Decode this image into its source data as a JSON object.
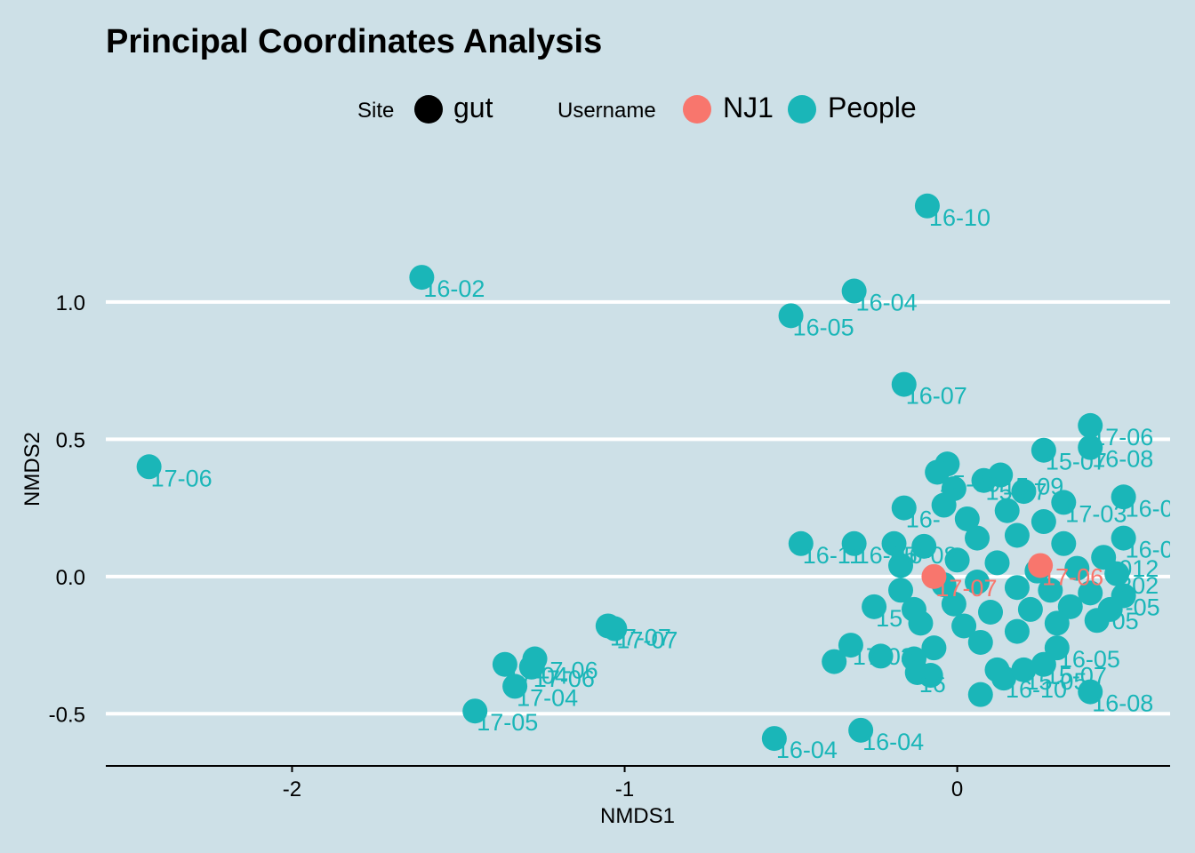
{
  "chart_data": {
    "type": "scatter",
    "title": "Principal Coordinates Analysis",
    "xlabel": "NMDS1",
    "ylabel": "NMDS2",
    "xlim": [
      -2.56,
      0.64
    ],
    "ylim": [
      -0.69,
      1.55
    ],
    "xticks": [
      {
        "v": -2,
        "label": "-2"
      },
      {
        "v": -1,
        "label": "-1"
      },
      {
        "v": 0,
        "label": "0"
      }
    ],
    "yticks": [
      {
        "v": -0.5,
        "label": "-0.5"
      },
      {
        "v": 0,
        "label": "0.0"
      },
      {
        "v": 0.5,
        "label": "0.5"
      },
      {
        "v": 1,
        "label": "1.0"
      }
    ],
    "grid": "horizontal major lines only",
    "legend": {
      "position": "top",
      "site": {
        "title": "Site",
        "items": [
          {
            "label": "gut",
            "color": "#000000"
          }
        ]
      },
      "username": {
        "title": "Username",
        "items": [
          {
            "label": "NJ1",
            "color": "#f8766d"
          },
          {
            "label": "People",
            "color": "#1ab6b8"
          }
        ]
      }
    },
    "colors": {
      "NJ1": "#f8766d",
      "People": "#1ab6b8"
    },
    "series": [
      {
        "name": "People",
        "points": [
          {
            "x": -0.09,
            "y": 1.35,
            "label": "16-10"
          },
          {
            "x": -1.61,
            "y": 1.09,
            "label": "16-02"
          },
          {
            "x": -0.31,
            "y": 1.04,
            "label": "16-04"
          },
          {
            "x": -0.5,
            "y": 0.95,
            "label": "16-05"
          },
          {
            "x": -0.16,
            "y": 0.7,
            "label": "16-07"
          },
          {
            "x": 0.4,
            "y": 0.55,
            "label": "17-06"
          },
          {
            "x": 0.4,
            "y": 0.47,
            "label": "16-08"
          },
          {
            "x": 0.26,
            "y": 0.46,
            "label": "15-07"
          },
          {
            "x": -2.43,
            "y": 0.4,
            "label": "17-06"
          },
          {
            "x": -0.03,
            "y": 0.41,
            "label": ""
          },
          {
            "x": -0.06,
            "y": 0.38,
            "label": "15-09"
          },
          {
            "x": 0.13,
            "y": 0.37,
            "label": "15-09"
          },
          {
            "x": 0.08,
            "y": 0.35,
            "label": "15-07"
          },
          {
            "x": 0.2,
            "y": 0.31,
            "label": ""
          },
          {
            "x": -0.01,
            "y": 0.32,
            "label": ""
          },
          {
            "x": 0.5,
            "y": 0.29,
            "label": "16-0"
          },
          {
            "x": 0.32,
            "y": 0.27,
            "label": "17-03"
          },
          {
            "x": -0.16,
            "y": 0.25,
            "label": "16-"
          },
          {
            "x": -0.04,
            "y": 0.26,
            "label": ""
          },
          {
            "x": 0.15,
            "y": 0.24,
            "label": ""
          },
          {
            "x": 0.03,
            "y": 0.21,
            "label": ""
          },
          {
            "x": 0.26,
            "y": 0.2,
            "label": ""
          },
          {
            "x": 0.5,
            "y": 0.14,
            "label": "16-0"
          },
          {
            "x": -0.47,
            "y": 0.12,
            "label": "16-11"
          },
          {
            "x": -0.31,
            "y": 0.12,
            "label": "16-05"
          },
          {
            "x": -0.19,
            "y": 0.12,
            "label": "16-08"
          },
          {
            "x": -0.1,
            "y": 0.11,
            "label": ""
          },
          {
            "x": 0.06,
            "y": 0.14,
            "label": ""
          },
          {
            "x": 0.18,
            "y": 0.15,
            "label": ""
          },
          {
            "x": 0.32,
            "y": 0.12,
            "label": ""
          },
          {
            "x": 0.44,
            "y": 0.07,
            "label": "2012"
          },
          {
            "x": -0.17,
            "y": 0.04,
            "label": ""
          },
          {
            "x": 0.0,
            "y": 0.06,
            "label": ""
          },
          {
            "x": 0.12,
            "y": 0.05,
            "label": ""
          },
          {
            "x": 0.24,
            "y": 0.02,
            "label": ""
          },
          {
            "x": 0.36,
            "y": 0.03,
            "label": ""
          },
          {
            "x": 0.48,
            "y": 0.01,
            "label": "202"
          },
          {
            "x": -0.17,
            "y": -0.05,
            "label": ""
          },
          {
            "x": -0.04,
            "y": -0.03,
            "label": ""
          },
          {
            "x": 0.06,
            "y": -0.02,
            "label": ""
          },
          {
            "x": 0.18,
            "y": -0.04,
            "label": ""
          },
          {
            "x": 0.28,
            "y": -0.05,
            "label": ""
          },
          {
            "x": 0.4,
            "y": -0.06,
            "label": ""
          },
          {
            "x": 0.5,
            "y": -0.07,
            "label": "-05"
          },
          {
            "x": -0.25,
            "y": -0.11,
            "label": "15"
          },
          {
            "x": -0.13,
            "y": -0.12,
            "label": ""
          },
          {
            "x": -0.01,
            "y": -0.1,
            "label": ""
          },
          {
            "x": 0.1,
            "y": -0.13,
            "label": ""
          },
          {
            "x": 0.22,
            "y": -0.12,
            "label": ""
          },
          {
            "x": 0.34,
            "y": -0.11,
            "label": ""
          },
          {
            "x": 0.46,
            "y": -0.12,
            "label": "05"
          },
          {
            "x": -0.11,
            "y": -0.17,
            "label": ""
          },
          {
            "x": 0.02,
            "y": -0.18,
            "label": ""
          },
          {
            "x": 0.18,
            "y": -0.2,
            "label": ""
          },
          {
            "x": 0.3,
            "y": -0.17,
            "label": ""
          },
          {
            "x": 0.42,
            "y": -0.16,
            "label": ""
          },
          {
            "x": -1.03,
            "y": -0.19,
            "label": "17-07"
          },
          {
            "x": -1.05,
            "y": -0.18,
            "label": "17-07"
          },
          {
            "x": 0.07,
            "y": -0.24,
            "label": ""
          },
          {
            "x": 0.3,
            "y": -0.26,
            "label": "16-05"
          },
          {
            "x": -0.32,
            "y": -0.25,
            "label": "17-03"
          },
          {
            "x": -0.07,
            "y": -0.26,
            "label": ""
          },
          {
            "x": -1.27,
            "y": -0.3,
            "label": "17-06"
          },
          {
            "x": -1.28,
            "y": -0.33,
            "label": "17-06"
          },
          {
            "x": -1.36,
            "y": -0.32,
            "label": "17-04"
          },
          {
            "x": -0.37,
            "y": -0.31,
            "label": ""
          },
          {
            "x": -0.23,
            "y": -0.29,
            "label": ""
          },
          {
            "x": -0.13,
            "y": -0.3,
            "label": ""
          },
          {
            "x": 0.12,
            "y": -0.34,
            "label": ""
          },
          {
            "x": 0.26,
            "y": -0.32,
            "label": "15-07"
          },
          {
            "x": -0.12,
            "y": -0.35,
            "label": "16"
          },
          {
            "x": -0.08,
            "y": -0.36,
            "label": ""
          },
          {
            "x": 0.14,
            "y": -0.37,
            "label": "16-10"
          },
          {
            "x": 0.2,
            "y": -0.34,
            "label": "15-05"
          },
          {
            "x": -1.33,
            "y": -0.4,
            "label": "17-04"
          },
          {
            "x": 0.07,
            "y": -0.43,
            "label": ""
          },
          {
            "x": 0.4,
            "y": -0.42,
            "label": "16-08"
          },
          {
            "x": -1.45,
            "y": -0.49,
            "label": "17-05"
          },
          {
            "x": -0.29,
            "y": -0.56,
            "label": "16-04"
          },
          {
            "x": -0.55,
            "y": -0.59,
            "label": "16-04"
          }
        ]
      },
      {
        "name": "NJ1",
        "points": [
          {
            "x": -0.07,
            "y": 0.0,
            "label": "17-07"
          },
          {
            "x": 0.25,
            "y": 0.04,
            "label": "17-06"
          }
        ]
      }
    ]
  }
}
